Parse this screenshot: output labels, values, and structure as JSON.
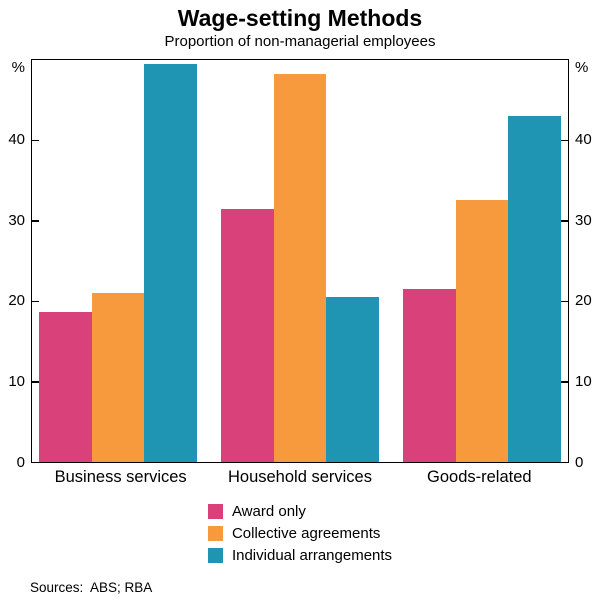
{
  "title": "Wage-setting Methods",
  "subtitle": "Proportion of non-managerial employees",
  "sources": {
    "text": "Sources:  ABS; RBA"
  },
  "axis": {
    "unit_left": "%",
    "unit_right": "%",
    "yticks": [
      "40",
      "30",
      "20",
      "10",
      "0"
    ]
  },
  "chart_data": {
    "type": "bar",
    "title": "Wage-setting Methods",
    "subtitle": "Proportion of non-managerial employees",
    "categories": [
      "Business services",
      "Household services",
      "Goods-related"
    ],
    "series": [
      {
        "name": "Award only",
        "color": "#d84179",
        "values": [
          18.7,
          31.5,
          21.5
        ]
      },
      {
        "name": "Collective agreements",
        "color": "#f79a3d",
        "values": [
          21.0,
          48.3,
          32.6
        ]
      },
      {
        "name": "Individual arrangements",
        "color": "#2095b3",
        "values": [
          49.5,
          20.5,
          43.0
        ]
      }
    ],
    "xlabel": "",
    "ylabel": "%",
    "ylim": [
      0,
      50
    ],
    "ytick_interval": 10,
    "grid": false,
    "legend_position": "bottom"
  }
}
